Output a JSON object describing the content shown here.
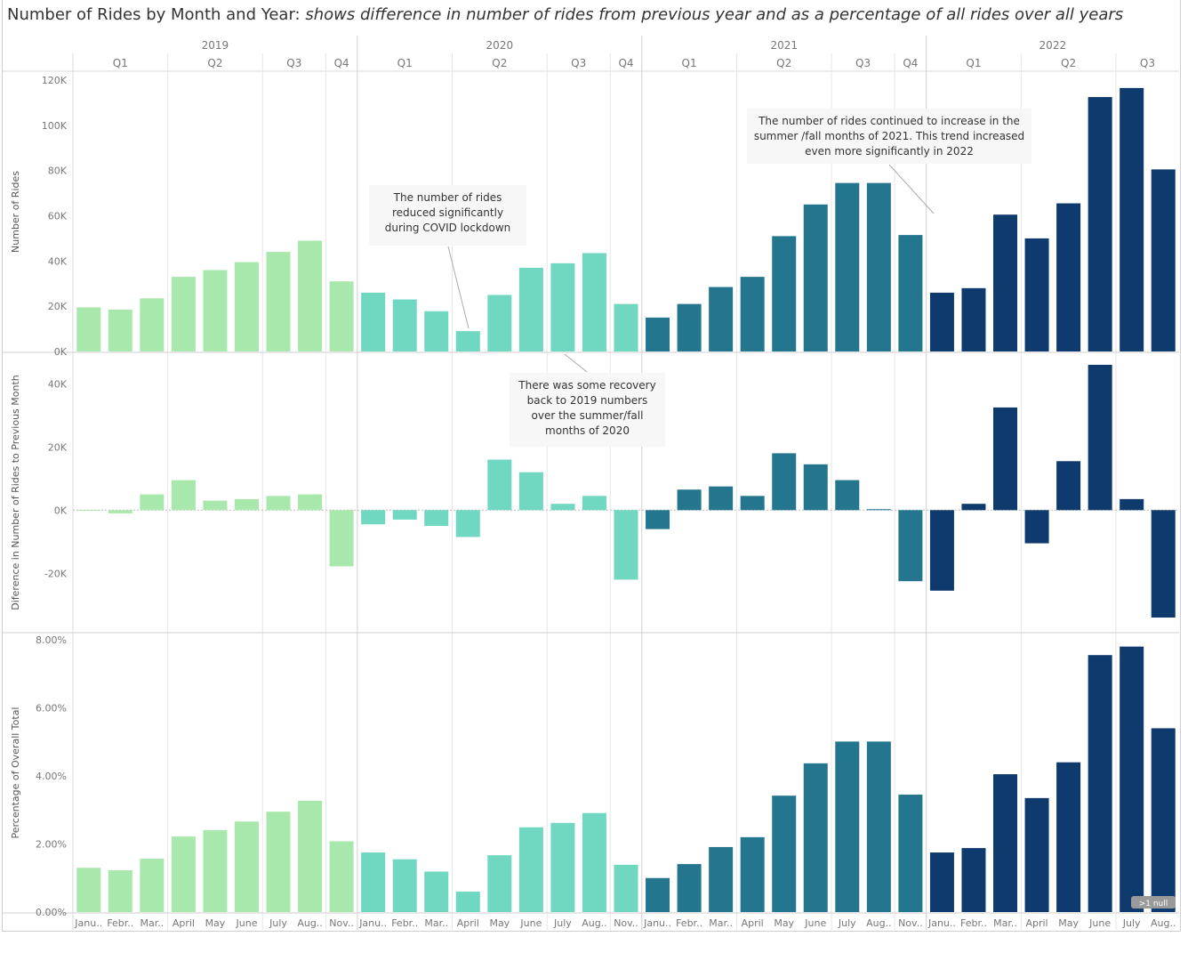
{
  "title": {
    "main": "Number of Rides by Month and Year:",
    "subtitle": "shows difference in number of rides from previous year and as a percentage of all rides over all years"
  },
  "chart_data": {
    "type": "bar",
    "years": [
      {
        "label": "2019",
        "color": "#a8e8ac"
      },
      {
        "label": "2020",
        "color": "#70d8c0"
      },
      {
        "label": "2021",
        "color": "#24768f"
      },
      {
        "label": "2022",
        "color": "#0e3a6e"
      }
    ],
    "months": [
      {
        "label": "Janu..",
        "year": 0,
        "q": "Q1"
      },
      {
        "label": "Febr..",
        "year": 0,
        "q": "Q1"
      },
      {
        "label": "Mar..",
        "year": 0,
        "q": "Q1"
      },
      {
        "label": "April",
        "year": 0,
        "q": "Q2"
      },
      {
        "label": "May",
        "year": 0,
        "q": "Q2"
      },
      {
        "label": "June",
        "year": 0,
        "q": "Q2"
      },
      {
        "label": "July",
        "year": 0,
        "q": "Q3"
      },
      {
        "label": "Aug..",
        "year": 0,
        "q": "Q3"
      },
      {
        "label": "Nov..",
        "year": 0,
        "q": "Q4"
      },
      {
        "label": "Janu..",
        "year": 1,
        "q": "Q1"
      },
      {
        "label": "Febr..",
        "year": 1,
        "q": "Q1"
      },
      {
        "label": "Mar..",
        "year": 1,
        "q": "Q1"
      },
      {
        "label": "April",
        "year": 1,
        "q": "Q2"
      },
      {
        "label": "May",
        "year": 1,
        "q": "Q2"
      },
      {
        "label": "June",
        "year": 1,
        "q": "Q2"
      },
      {
        "label": "July",
        "year": 1,
        "q": "Q3"
      },
      {
        "label": "Aug..",
        "year": 1,
        "q": "Q3"
      },
      {
        "label": "Nov..",
        "year": 1,
        "q": "Q4"
      },
      {
        "label": "Janu..",
        "year": 2,
        "q": "Q1"
      },
      {
        "label": "Febr..",
        "year": 2,
        "q": "Q1"
      },
      {
        "label": "Mar..",
        "year": 2,
        "q": "Q1"
      },
      {
        "label": "April",
        "year": 2,
        "q": "Q2"
      },
      {
        "label": "May",
        "year": 2,
        "q": "Q2"
      },
      {
        "label": "June",
        "year": 2,
        "q": "Q2"
      },
      {
        "label": "July",
        "year": 2,
        "q": "Q3"
      },
      {
        "label": "Aug..",
        "year": 2,
        "q": "Q3"
      },
      {
        "label": "Nov..",
        "year": 2,
        "q": "Q4"
      },
      {
        "label": "Janu..",
        "year": 3,
        "q": "Q1"
      },
      {
        "label": "Febr..",
        "year": 3,
        "q": "Q1"
      },
      {
        "label": "Mar..",
        "year": 3,
        "q": "Q1"
      },
      {
        "label": "April",
        "year": 3,
        "q": "Q2"
      },
      {
        "label": "May",
        "year": 3,
        "q": "Q2"
      },
      {
        "label": "June",
        "year": 3,
        "q": "Q2"
      },
      {
        "label": "July",
        "year": 3,
        "q": "Q3"
      },
      {
        "label": "Aug..",
        "year": 3,
        "q": "Q3"
      }
    ],
    "panels": [
      {
        "ylabel": "Number of Rides",
        "ylim": [
          0,
          120000
        ],
        "ticks": [
          {
            "v": 0,
            "t": "0K"
          },
          {
            "v": 20000,
            "t": "20K"
          },
          {
            "v": 40000,
            "t": "40K"
          },
          {
            "v": 60000,
            "t": "60K"
          },
          {
            "v": 80000,
            "t": "80K"
          },
          {
            "v": 100000,
            "t": "100K"
          },
          {
            "v": 120000,
            "t": "120K"
          }
        ],
        "values": [
          19500,
          18500,
          23500,
          33000,
          36000,
          39500,
          44000,
          49000,
          31000,
          26000,
          23000,
          17800,
          9000,
          25000,
          37000,
          39000,
          43500,
          21000,
          15000,
          21000,
          28500,
          33000,
          51000,
          65000,
          74500,
          74500,
          51500,
          26000,
          28000,
          60500,
          50000,
          65500,
          112500,
          116500,
          80500
        ]
      },
      {
        "ylabel": "Diference in Number of Rides to Previous Month",
        "ylim": [
          -34000,
          46000
        ],
        "ticks": [
          {
            "v": -20000,
            "t": "-20K"
          },
          {
            "v": 0,
            "t": "0K"
          },
          {
            "v": 20000,
            "t": "20K"
          },
          {
            "v": 40000,
            "t": "40K"
          }
        ],
        "values": [
          0,
          -1000,
          5000,
          9500,
          3000,
          3500,
          4500,
          5000,
          -17800,
          -4500,
          -3000,
          -5000,
          -8500,
          16000,
          12000,
          2000,
          4500,
          -22000,
          -6000,
          6500,
          7500,
          4500,
          18000,
          14500,
          9500,
          300,
          -22500,
          -25500,
          2000,
          32500,
          -10500,
          15500,
          46000,
          3500,
          -34000
        ]
      },
      {
        "ylabel": "Percentage of Overall Total",
        "ylim": [
          0,
          0.08
        ],
        "ticks": [
          {
            "v": 0,
            "t": "0.00%"
          },
          {
            "v": 0.02,
            "t": "2.00%"
          },
          {
            "v": 0.04,
            "t": "4.00%"
          },
          {
            "v": 0.06,
            "t": "6.00%"
          },
          {
            "v": 0.08,
            "t": "8.00%"
          }
        ],
        "values": [
          0.013,
          0.0123,
          0.0157,
          0.0222,
          0.0241,
          0.0266,
          0.0295,
          0.0327,
          0.0208,
          0.0175,
          0.0155,
          0.0119,
          0.006,
          0.0167,
          0.0249,
          0.0262,
          0.0291,
          0.0139,
          0.01,
          0.0141,
          0.0191,
          0.022,
          0.0342,
          0.0437,
          0.0501,
          0.0501,
          0.0345,
          0.0175,
          0.0188,
          0.0405,
          0.0335,
          0.044,
          0.0755,
          0.078,
          0.054
        ]
      }
    ],
    "annotations": [
      {
        "text": "The number of rides continued to increase in the summer /fall months of 2021. This trend increased even more  significantly in 2022",
        "lines": [
          "The number of rides continued to increase in the",
          "summer /fall months of 2021. This trend increased",
          "even more  significantly in 2022"
        ]
      },
      {
        "text": "The number of rides reduced significantly during COVID lockdown",
        "lines": [
          "The number of rides",
          "reduced significantly",
          "during COVID lockdown"
        ]
      },
      {
        "text": "There was some recovery back to 2019 numbers over the summer/fall months of 2020",
        "lines": [
          "There was some recovery",
          "back to 2019 numbers",
          "over the summer/fall",
          "months of 2020"
        ]
      }
    ],
    "null_badge": ">1 null",
    "grid": false,
    "legend": "none"
  }
}
